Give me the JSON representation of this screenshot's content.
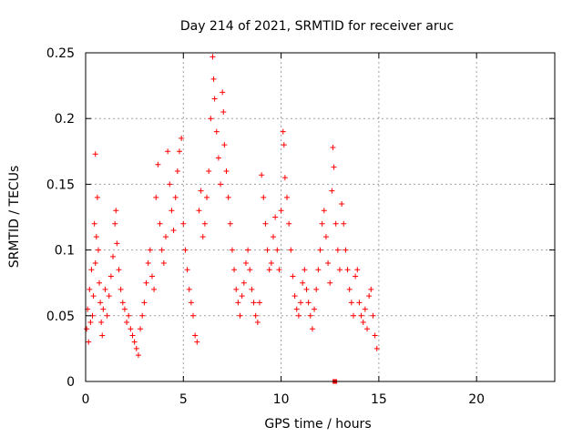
{
  "chart_data": {
    "type": "scatter",
    "title": "Day 214 of 2021, SRMTID for receiver aruc",
    "xlabel": "GPS time / hours",
    "ylabel": "SRMTID / TECUs",
    "xlim": [
      0,
      24
    ],
    "ylim": [
      0,
      0.25
    ],
    "xticks": [
      0,
      5,
      10,
      15,
      20
    ],
    "xtick_labels": [
      "0",
      "5",
      "10",
      "15",
      "20"
    ],
    "yticks": [
      0,
      0.05,
      0.1,
      0.15,
      0.2,
      0.25
    ],
    "ytick_labels": [
      "0",
      "0.05",
      "0.1",
      "0.15",
      "0.2",
      "0.25"
    ],
    "grid": true,
    "marker": "+",
    "series": [
      {
        "name": "SRMTID",
        "color": "#ff0000",
        "points": [
          [
            0.05,
            0.04
          ],
          [
            0.1,
            0.055
          ],
          [
            0.15,
            0.03
          ],
          [
            0.2,
            0.07
          ],
          [
            0.25,
            0.045
          ],
          [
            0.3,
            0.085
          ],
          [
            0.35,
            0.05
          ],
          [
            0.4,
            0.065
          ],
          [
            0.45,
            0.12
          ],
          [
            0.5,
            0.09
          ],
          [
            0.5,
            0.173
          ],
          [
            0.55,
            0.11
          ],
          [
            0.6,
            0.14
          ],
          [
            0.65,
            0.1
          ],
          [
            0.7,
            0.075
          ],
          [
            0.75,
            0.06
          ],
          [
            0.8,
            0.045
          ],
          [
            0.85,
            0.035
          ],
          [
            0.9,
            0.055
          ],
          [
            1.0,
            0.07
          ],
          [
            1.1,
            0.05
          ],
          [
            1.2,
            0.065
          ],
          [
            1.3,
            0.08
          ],
          [
            1.4,
            0.095
          ],
          [
            1.5,
            0.12
          ],
          [
            1.55,
            0.13
          ],
          [
            1.6,
            0.105
          ],
          [
            1.7,
            0.085
          ],
          [
            1.8,
            0.07
          ],
          [
            1.9,
            0.06
          ],
          [
            2.0,
            0.055
          ],
          [
            2.1,
            0.045
          ],
          [
            2.2,
            0.05
          ],
          [
            2.3,
            0.04
          ],
          [
            2.4,
            0.035
          ],
          [
            2.5,
            0.03
          ],
          [
            2.6,
            0.025
          ],
          [
            2.7,
            0.02
          ],
          [
            2.8,
            0.04
          ],
          [
            2.9,
            0.05
          ],
          [
            3.0,
            0.06
          ],
          [
            3.1,
            0.075
          ],
          [
            3.2,
            0.09
          ],
          [
            3.3,
            0.1
          ],
          [
            3.4,
            0.08
          ],
          [
            3.5,
            0.07
          ],
          [
            3.6,
            0.14
          ],
          [
            3.7,
            0.165
          ],
          [
            3.8,
            0.12
          ],
          [
            3.9,
            0.1
          ],
          [
            4.0,
            0.09
          ],
          [
            4.1,
            0.11
          ],
          [
            4.2,
            0.175
          ],
          [
            4.3,
            0.15
          ],
          [
            4.4,
            0.13
          ],
          [
            4.5,
            0.115
          ],
          [
            4.6,
            0.14
          ],
          [
            4.7,
            0.16
          ],
          [
            4.8,
            0.175
          ],
          [
            4.9,
            0.185
          ],
          [
            5.0,
            0.12
          ],
          [
            5.1,
            0.1
          ],
          [
            5.2,
            0.085
          ],
          [
            5.3,
            0.07
          ],
          [
            5.4,
            0.06
          ],
          [
            5.5,
            0.05
          ],
          [
            5.6,
            0.035
          ],
          [
            5.7,
            0.03
          ],
          [
            5.8,
            0.13
          ],
          [
            5.9,
            0.145
          ],
          [
            6.0,
            0.11
          ],
          [
            6.1,
            0.12
          ],
          [
            6.2,
            0.14
          ],
          [
            6.3,
            0.16
          ],
          [
            6.4,
            0.2
          ],
          [
            6.5,
            0.247
          ],
          [
            6.55,
            0.23
          ],
          [
            6.6,
            0.215
          ],
          [
            6.7,
            0.19
          ],
          [
            6.8,
            0.17
          ],
          [
            6.9,
            0.15
          ],
          [
            7.0,
            0.22
          ],
          [
            7.05,
            0.205
          ],
          [
            7.1,
            0.18
          ],
          [
            7.2,
            0.16
          ],
          [
            7.3,
            0.14
          ],
          [
            7.4,
            0.12
          ],
          [
            7.5,
            0.1
          ],
          [
            7.6,
            0.085
          ],
          [
            7.7,
            0.07
          ],
          [
            7.8,
            0.06
          ],
          [
            7.9,
            0.05
          ],
          [
            8.0,
            0.065
          ],
          [
            8.1,
            0.075
          ],
          [
            8.2,
            0.09
          ],
          [
            8.3,
            0.1
          ],
          [
            8.4,
            0.085
          ],
          [
            8.5,
            0.07
          ],
          [
            8.6,
            0.06
          ],
          [
            8.7,
            0.05
          ],
          [
            8.8,
            0.045
          ],
          [
            8.9,
            0.06
          ],
          [
            9.0,
            0.157
          ],
          [
            9.1,
            0.14
          ],
          [
            9.2,
            0.12
          ],
          [
            9.3,
            0.1
          ],
          [
            9.4,
            0.085
          ],
          [
            9.5,
            0.09
          ],
          [
            9.6,
            0.11
          ],
          [
            9.7,
            0.125
          ],
          [
            9.8,
            0.1
          ],
          [
            9.9,
            0.085
          ],
          [
            10.0,
            0.13
          ],
          [
            10.1,
            0.19
          ],
          [
            10.15,
            0.18
          ],
          [
            10.2,
            0.155
          ],
          [
            10.3,
            0.14
          ],
          [
            10.4,
            0.12
          ],
          [
            10.5,
            0.1
          ],
          [
            10.6,
            0.08
          ],
          [
            10.7,
            0.065
          ],
          [
            10.8,
            0.055
          ],
          [
            10.9,
            0.05
          ],
          [
            11.0,
            0.06
          ],
          [
            11.1,
            0.075
          ],
          [
            11.2,
            0.085
          ],
          [
            11.3,
            0.07
          ],
          [
            11.4,
            0.06
          ],
          [
            11.5,
            0.05
          ],
          [
            11.6,
            0.04
          ],
          [
            11.7,
            0.055
          ],
          [
            11.8,
            0.07
          ],
          [
            11.9,
            0.085
          ],
          [
            12.0,
            0.1
          ],
          [
            12.1,
            0.12
          ],
          [
            12.2,
            0.13
          ],
          [
            12.3,
            0.11
          ],
          [
            12.4,
            0.09
          ],
          [
            12.5,
            0.075
          ],
          [
            12.6,
            0.145
          ],
          [
            12.65,
            0.178
          ],
          [
            12.7,
            0.163
          ],
          [
            12.8,
            0.12
          ],
          [
            12.9,
            0.1
          ],
          [
            13.0,
            0.085
          ],
          [
            13.1,
            0.135
          ],
          [
            13.2,
            0.12
          ],
          [
            13.3,
            0.1
          ],
          [
            13.4,
            0.085
          ],
          [
            13.5,
            0.07
          ],
          [
            13.6,
            0.06
          ],
          [
            13.7,
            0.05
          ],
          [
            13.8,
            0.08
          ],
          [
            13.9,
            0.085
          ],
          [
            14.0,
            0.06
          ],
          [
            14.1,
            0.05
          ],
          [
            14.2,
            0.045
          ],
          [
            14.3,
            0.055
          ],
          [
            14.4,
            0.04
          ],
          [
            14.5,
            0.065
          ],
          [
            14.6,
            0.07
          ],
          [
            14.7,
            0.05
          ],
          [
            14.8,
            0.035
          ],
          [
            14.9,
            0.025
          ]
        ],
        "markers_at_zero": [
          12.75
        ]
      }
    ]
  }
}
